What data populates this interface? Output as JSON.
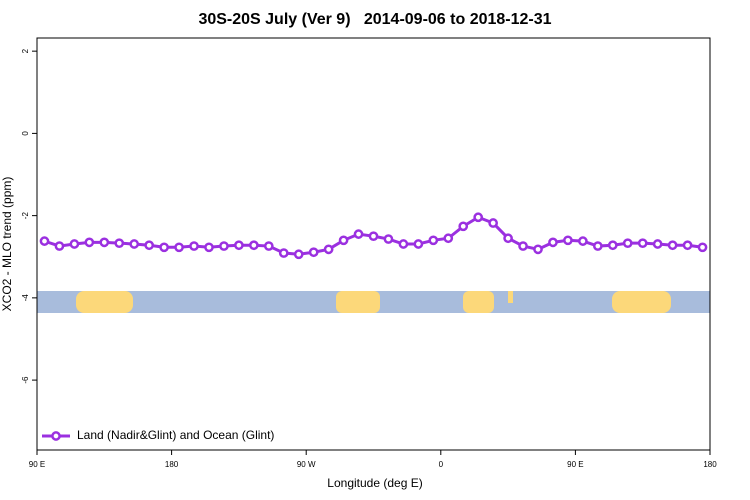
{
  "chart_data": {
    "type": "line",
    "title": "30S-20S July (Ver 9)   2014-09-06 to 2018-12-31",
    "x_label": "Longitude (deg E)",
    "y_label": "XCO2 - MLO trend (ppm)",
    "x": [
      95,
      105,
      115,
      125,
      135,
      145,
      155,
      165,
      175,
      185,
      195,
      205,
      215,
      225,
      235,
      245,
      255,
      265,
      275,
      285,
      295,
      305,
      315,
      325,
      335,
      345,
      355,
      365,
      375,
      385,
      395,
      405,
      415,
      425,
      435,
      445,
      455,
      465,
      475,
      485,
      495,
      505,
      515,
      525,
      535
    ],
    "series": [
      {
        "name": "Land (Nadir&Glint) and Ocean (Glint)",
        "color": "#9b30e0",
        "values": [
          -2.62,
          -2.74,
          -2.69,
          -2.65,
          -2.65,
          -2.67,
          -2.69,
          -2.72,
          -2.77,
          -2.77,
          -2.74,
          -2.77,
          -2.74,
          -2.72,
          -2.72,
          -2.74,
          -2.91,
          -2.94,
          -2.89,
          -2.82,
          -2.6,
          -2.45,
          -2.5,
          -2.57,
          -2.69,
          -2.69,
          -2.6,
          -2.55,
          -2.26,
          -2.04,
          -2.18,
          -2.55,
          -2.74,
          -2.82,
          -2.65,
          -2.6,
          -2.62,
          -2.74,
          -2.72,
          -2.67,
          -2.67,
          -2.69,
          -2.72,
          -2.72,
          -2.77
        ]
      }
    ],
    "xlim": [
      90,
      540
    ],
    "xticks": [
      {
        "value": 90,
        "label": "90 E"
      },
      180,
      {
        "value": 270,
        "label": "90 W"
      },
      {
        "value": 360,
        "label": "0"
      },
      {
        "value": 450,
        "label": "90 E"
      },
      {
        "value": 540,
        "label": "180"
      }
    ],
    "ylim": [
      -7.7,
      2.32
    ],
    "yticks": [
      2,
      0,
      -2,
      -4,
      -6
    ],
    "legend_position": "bottom-left"
  }
}
